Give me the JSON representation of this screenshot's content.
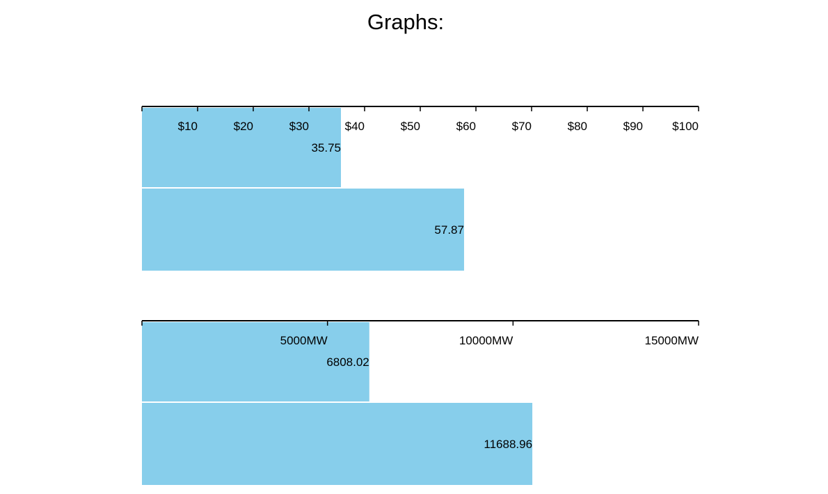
{
  "page": {
    "title": "Graphs:"
  },
  "colors": {
    "bar": "#87ceeb",
    "axis": "#000000"
  },
  "chart_data": [
    {
      "type": "bar",
      "orientation": "horizontal",
      "values": [
        35.75,
        57.87
      ],
      "data_labels": [
        "35.75",
        "57.87"
      ],
      "xlim": [
        0,
        100
      ],
      "ticks": [
        0,
        10,
        20,
        30,
        40,
        50,
        60,
        70,
        80,
        90,
        100
      ],
      "tick_labels": [
        "",
        "$10",
        "$20",
        "$30",
        "$40",
        "$50",
        "$60",
        "$70",
        "$80",
        "$90",
        "$100"
      ],
      "axis_position": "top",
      "grid": false
    },
    {
      "type": "bar",
      "orientation": "horizontal",
      "values": [
        6808.02,
        11688.96
      ],
      "data_labels": [
        "6808.02",
        "11688.96"
      ],
      "xlim": [
        0,
        15000
      ],
      "ticks": [
        0,
        5000,
        10000,
        15000
      ],
      "tick_labels": [
        "",
        "5000MW",
        "10000MW",
        "15000MW"
      ],
      "axis_position": "top",
      "grid": false
    }
  ]
}
